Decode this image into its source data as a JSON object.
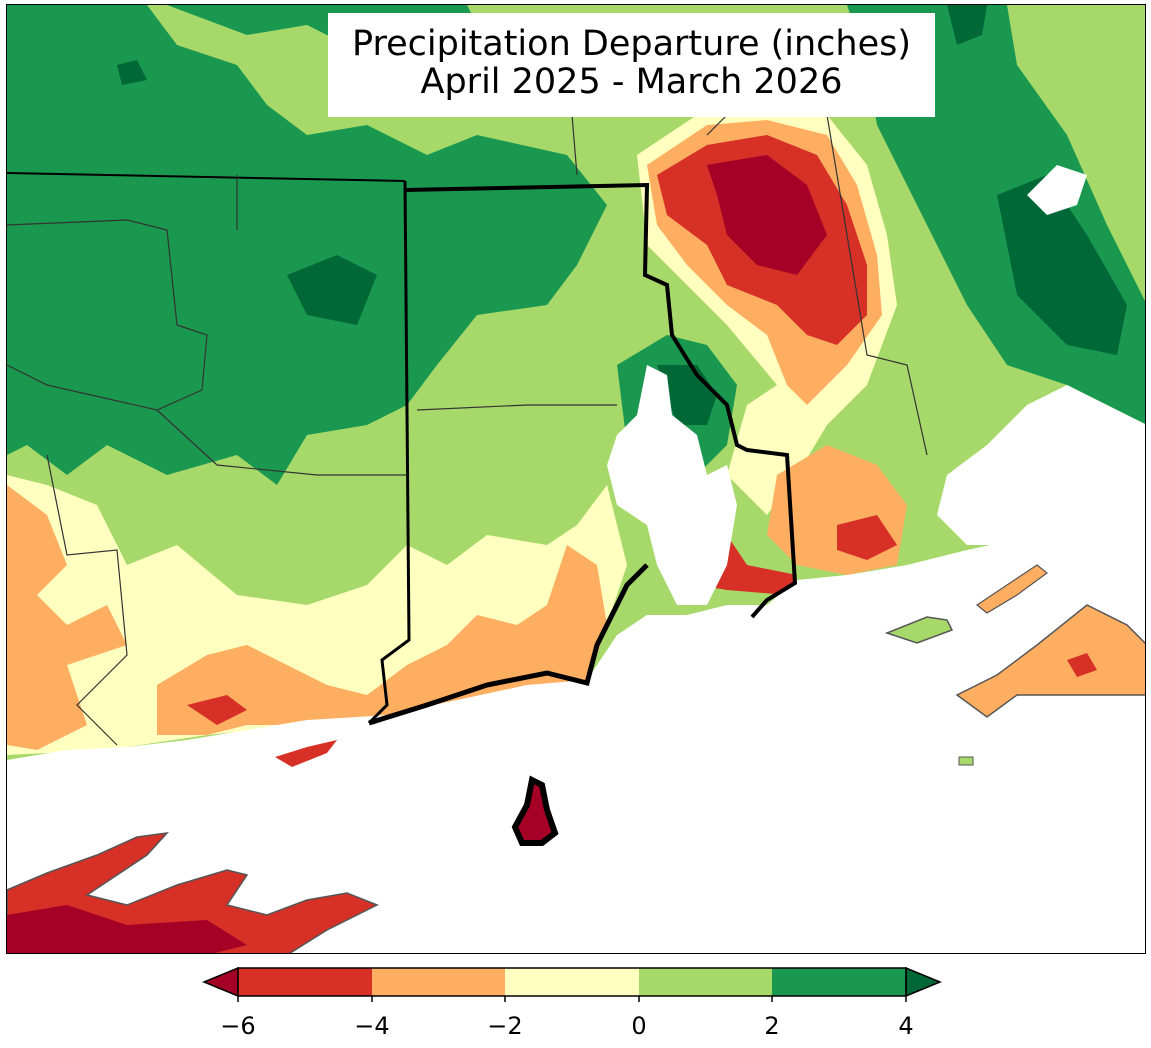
{
  "title": {
    "line1": "Precipitation Departure (inches)",
    "line2": "April 2025 - March 2026"
  },
  "colorbar": {
    "ticks": [
      "−6",
      "−4",
      "−2",
      "0",
      "2",
      "4"
    ],
    "tick_values": [
      -6,
      -4,
      -2,
      0,
      2,
      4
    ],
    "extend": "both",
    "colors": {
      "below_min": "#a50026",
      "-6_to_-4": "#d73027",
      "-4_to_-2": "#fdae61",
      "-2_to_0": "#ffffbf",
      "0_to_2": "#a6d96a",
      "2_to_4": "#1a9850",
      "above_max": "#006837"
    }
  },
  "map": {
    "region": "Southern New England",
    "highlighted_state": "Rhode Island",
    "water_color": "#ffffff"
  }
}
